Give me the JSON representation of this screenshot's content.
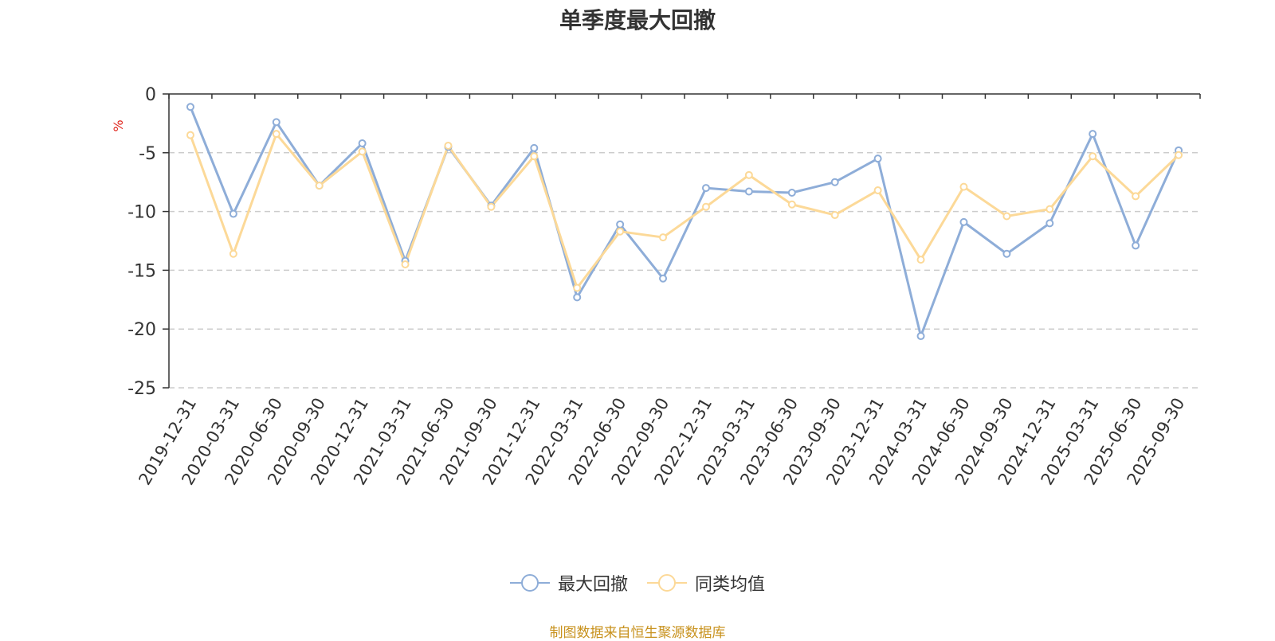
{
  "chart_data": {
    "type": "line",
    "title": "单季度最大回撤",
    "ylabel": "%",
    "ylim": [
      -25,
      0
    ],
    "yticks": [
      0,
      -5,
      -10,
      -15,
      -20,
      -25
    ],
    "categories": [
      "2019-12-31",
      "2020-03-31",
      "2020-06-30",
      "2020-09-30",
      "2020-12-31",
      "2021-03-31",
      "2021-06-30",
      "2021-09-30",
      "2021-12-31",
      "2022-03-31",
      "2022-06-30",
      "2022-09-30",
      "2022-12-31",
      "2023-03-31",
      "2023-06-30",
      "2023-09-30",
      "2023-12-31",
      "2024-03-31",
      "2024-06-30",
      "2024-09-30",
      "2024-12-31",
      "2025-03-31",
      "2025-06-30",
      "2025-09-30"
    ],
    "series": [
      {
        "name": "最大回撤",
        "color": "#8eadd8",
        "values": [
          -1.1,
          -10.2,
          -2.4,
          -7.8,
          -4.2,
          -14.2,
          -4.5,
          -9.5,
          -4.6,
          -17.3,
          -11.1,
          -15.7,
          -8.0,
          -8.3,
          -8.4,
          -7.5,
          -5.5,
          -20.6,
          -10.9,
          -13.6,
          -11.0,
          -3.4,
          -12.9,
          -4.8
        ]
      },
      {
        "name": "同类均值",
        "color": "#fcd998",
        "values": [
          -3.5,
          -13.6,
          -3.4,
          -7.8,
          -4.9,
          -14.5,
          -4.4,
          -9.6,
          -5.3,
          -16.5,
          -11.7,
          -12.2,
          -9.6,
          -6.9,
          -9.4,
          -10.3,
          -8.2,
          -14.1,
          -7.9,
          -10.4,
          -9.8,
          -5.3,
          -8.7,
          -5.2
        ]
      }
    ],
    "grid": true,
    "legend_position": "bottom"
  },
  "legend": [
    {
      "label": "最大回撤",
      "icon": "circle-line-icon"
    },
    {
      "label": "同类均值",
      "icon": "circle-line-icon"
    }
  ],
  "source_text": "制图数据来自恒生聚源数据库"
}
